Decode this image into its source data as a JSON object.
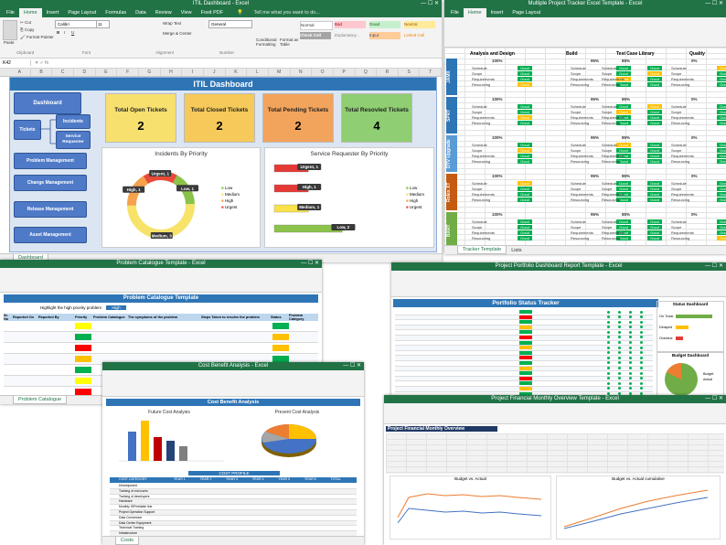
{
  "itil": {
    "title_bar": "ITIL Dashboard - Excel",
    "tabs": [
      "File",
      "Home",
      "Insert",
      "Page Layout",
      "Formulas",
      "Data",
      "Review",
      "View",
      "Foxit PDF"
    ],
    "tell_me": "Tell me what you want to do...",
    "clipboard": {
      "cut": "Cut",
      "copy": "Copy",
      "format_painter": "Format Painter",
      "paste": "Paste",
      "group": "Clipboard"
    },
    "font": {
      "name": "Calibri",
      "size": "11",
      "group": "Font"
    },
    "alignment": {
      "wrap": "Wrap Text",
      "merge": "Merge & Center",
      "group": "Alignment"
    },
    "number": {
      "format": "General",
      "group": "Number"
    },
    "styles": {
      "conditional": "Conditional Formatting",
      "format_table": "Format as Table",
      "normal": "Normal",
      "bad": "Bad",
      "good": "Good",
      "neutral": "Neutral",
      "check_cell": "Check Cell",
      "explanatory": "Explanatory...",
      "input": "Input",
      "linked_cell": "Linked Cell"
    },
    "name_box": "K42",
    "columns": [
      "A",
      "B",
      "C",
      "D",
      "E",
      "F",
      "G",
      "H",
      "I",
      "J",
      "K",
      "L",
      "M",
      "N",
      "O",
      "P",
      "Q",
      "R",
      "S",
      "T"
    ],
    "dashboard_title": "ITIL Dashboard",
    "nav": {
      "dashboard": "Dashboard",
      "tickets": "Tickets",
      "incidents": "Incidents",
      "service_requester": "Service Requester",
      "problem": "Problem Management",
      "change": "Change Management",
      "release": "Release Management",
      "asset": "Asset Management"
    },
    "kpis": [
      {
        "label": "Total Open Tickets",
        "value": "2",
        "color": "#f7e06e"
      },
      {
        "label": "Total Closed Tickets",
        "value": "2",
        "color": "#f5c95a"
      },
      {
        "label": "Total Pending Tickets",
        "value": "2",
        "color": "#f3a45c"
      },
      {
        "label": "Total Resovled Tickets",
        "value": "4",
        "color": "#8fce72"
      }
    ],
    "incidents_chart": {
      "title": "Incidents By Priority",
      "type": "pie",
      "slices": [
        {
          "name": "Low",
          "value": 1,
          "label": "Low, 1",
          "color": "#8bc34a"
        },
        {
          "name": "Medium",
          "value": 3,
          "label": "Medium, 3",
          "color": "#f7e36a"
        },
        {
          "name": "High",
          "value": 1,
          "label": "High, 1",
          "color": "#f6a14c"
        },
        {
          "name": "Urgent",
          "value": 1,
          "label": "Urgent, 1",
          "color": "#e84a3a"
        }
      ],
      "legend": [
        "Low",
        "Medium",
        "High",
        "Urgent"
      ]
    },
    "service_chart": {
      "title": "Service Requester By Priority",
      "type": "bar",
      "categories": [
        "Urgent",
        "High",
        "Medium",
        "Low"
      ],
      "values": [
        1,
        1,
        1,
        2
      ],
      "labels": [
        "Urgent, 1",
        "High, 1",
        "Medium, 1",
        "Low, 2"
      ],
      "colors": [
        "#e53935",
        "#e53935",
        "#f9e24a",
        "#8bc34a"
      ],
      "xlim": [
        0,
        2
      ],
      "legend": [
        "Low",
        "Medium",
        "High",
        "Urgent"
      ]
    },
    "sheet_tab": "Dashboard"
  },
  "tracker": {
    "title_bar": "Multiple Project Tracker Excel Template - Excel",
    "phases": [
      "Analysis and Design",
      "Build",
      "Test Case Library",
      "Quality"
    ],
    "projects": [
      "JAMX",
      "SPRT",
      "DTV Upgrade",
      "Rolex XT",
      "BXRT"
    ],
    "pcts": [
      "100%",
      "95%",
      "85%",
      "0%"
    ],
    "items": [
      "Schedule",
      "Scope",
      "Requirements",
      "Resourcing"
    ],
    "good": "Good",
    "sheet_tabs": [
      "Tracker Template",
      "Lists"
    ]
  },
  "problem": {
    "title_bar": "Problem Catalogue Template - Excel",
    "sheet_title": "Problem Catalogue Template",
    "highlight_label": "Highlight the high priority problem",
    "highlight_value": "High",
    "headers": [
      "Sr. No",
      "Reported On",
      "Reported By",
      "Priority",
      "Problem Catalogue",
      "The symptoms of the problem",
      "Steps Taken to resolve the problem",
      "Status",
      "Problem Category"
    ],
    "sheet_tab": "Problem Catalogue"
  },
  "portfolio": {
    "title_bar": "Project Portfolio Dashboard Report Template - Excel",
    "sheet_title": "Portfolio Status Tracker",
    "status_title": "Status Dashboard",
    "budget_title": "Budget Dashboard",
    "status_legend": [
      "On Track",
      "Delayed",
      "Overdue"
    ],
    "budget_legend": [
      "Budget",
      "Actual"
    ]
  },
  "cost": {
    "title_bar": "Cost Benefit Analysis - Excel",
    "sheet_title": "Cost Benefit Analysis",
    "future_title": "Future Cost Analysis",
    "present_title": "Present Cost Analysis",
    "table_title": "COST PROFILE",
    "headers": [
      "COST CATEGORY",
      "YEAR 1",
      "YEAR 2",
      "YEAR 3",
      "YEAR 4",
      "YEAR 5",
      "YEAR 6",
      "TOTAL"
    ],
    "rows": [
      "Development",
      "Training of end users",
      "Training of developers",
      "Hardware",
      "Monthly ISP/reliable line",
      "Project Operation Support",
      "Data Conversion",
      "Data Center Equipment",
      "Technical Training",
      "Infrastructure"
    ],
    "total_rows": [
      "Total Present Value Cost",
      "Total Future Value Cost"
    ],
    "sheet_tab": "Costs"
  },
  "financial": {
    "title_bar": "Project Financial Monthly Overview Template - Excel",
    "sheet_title": "Project Financial Monthly Overview",
    "chart1": "Budget vs. Actual",
    "chart2": "Budget vs. Actual cumulative"
  }
}
